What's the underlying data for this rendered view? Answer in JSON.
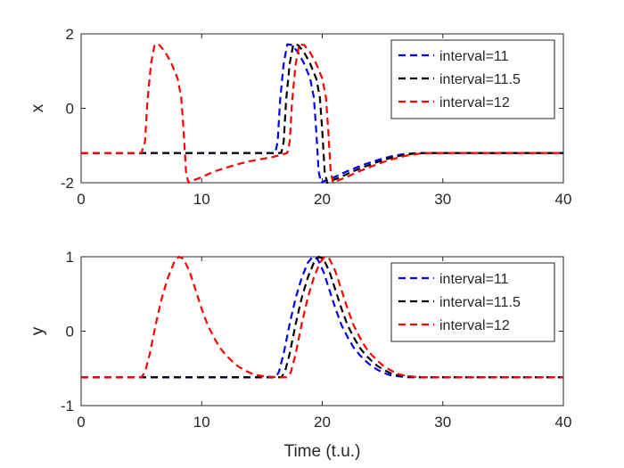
{
  "chart_data": [
    {
      "type": "line",
      "ylabel": "x",
      "xlabel": "",
      "xlim": [
        0,
        40
      ],
      "ylim": [
        -2,
        2
      ],
      "xticks": [
        "0",
        "10",
        "20",
        "30",
        "40"
      ],
      "yticks": [
        "-2",
        "0",
        "2"
      ],
      "legend_position": "top-right",
      "series": [
        {
          "name": "interval=11",
          "color": "#0000ff",
          "points": [
            [
              0,
              -1.2
            ],
            [
              16.1,
              -1.2
            ],
            [
              16.3,
              -0.9
            ],
            [
              16.5,
              0.2
            ],
            [
              16.8,
              1.2
            ],
            [
              17.1,
              1.72
            ],
            [
              17.5,
              1.7
            ],
            [
              18.0,
              1.5
            ],
            [
              18.5,
              1.2
            ],
            [
              19.0,
              0.8
            ],
            [
              19.3,
              0.3
            ],
            [
              19.5,
              -0.6
            ],
            [
              19.7,
              -1.7
            ],
            [
              19.9,
              -2.0
            ],
            [
              20.2,
              -1.95
            ],
            [
              21,
              -1.85
            ],
            [
              22,
              -1.7
            ],
            [
              23,
              -1.57
            ],
            [
              24,
              -1.45
            ],
            [
              25,
              -1.35
            ],
            [
              26,
              -1.27
            ],
            [
              27,
              -1.22
            ],
            [
              28,
              -1.2
            ],
            [
              40,
              -1.2
            ]
          ]
        },
        {
          "name": "interval=11.5",
          "color": "#000000",
          "points": [
            [
              0,
              -1.2
            ],
            [
              16.6,
              -1.2
            ],
            [
              16.8,
              -0.9
            ],
            [
              17.0,
              0.2
            ],
            [
              17.3,
              1.2
            ],
            [
              17.6,
              1.72
            ],
            [
              18.0,
              1.7
            ],
            [
              18.5,
              1.5
            ],
            [
              19.0,
              1.2
            ],
            [
              19.5,
              0.8
            ],
            [
              19.8,
              0.3
            ],
            [
              20.0,
              -0.6
            ],
            [
              20.2,
              -1.7
            ],
            [
              20.4,
              -2.0
            ],
            [
              20.7,
              -1.95
            ],
            [
              21.5,
              -1.85
            ],
            [
              22.5,
              -1.7
            ],
            [
              23.5,
              -1.57
            ],
            [
              24.5,
              -1.45
            ],
            [
              25.5,
              -1.35
            ],
            [
              26.5,
              -1.27
            ],
            [
              27.5,
              -1.22
            ],
            [
              28.5,
              -1.2
            ],
            [
              40,
              -1.2
            ]
          ]
        },
        {
          "name": "interval=12",
          "color": "#ff0000",
          "points": [
            [
              0,
              -1.2
            ],
            [
              5.0,
              -1.2
            ],
            [
              5.3,
              -0.9
            ],
            [
              5.5,
              0.2
            ],
            [
              5.8,
              1.2
            ],
            [
              6.1,
              1.72
            ],
            [
              6.5,
              1.7
            ],
            [
              7.0,
              1.5
            ],
            [
              7.5,
              1.2
            ],
            [
              8.0,
              0.8
            ],
            [
              8.3,
              0.3
            ],
            [
              8.5,
              -0.6
            ],
            [
              8.7,
              -1.7
            ],
            [
              8.9,
              -2.0
            ],
            [
              9.2,
              -1.95
            ],
            [
              10,
              -1.85
            ],
            [
              11,
              -1.7
            ],
            [
              12,
              -1.6
            ],
            [
              13,
              -1.5
            ],
            [
              14,
              -1.42
            ],
            [
              15,
              -1.36
            ],
            [
              16,
              -1.3
            ],
            [
              17.1,
              -1.2
            ],
            [
              17.3,
              -0.9
            ],
            [
              17.5,
              0.2
            ],
            [
              17.8,
              1.2
            ],
            [
              18.1,
              1.72
            ],
            [
              18.5,
              1.7
            ],
            [
              19.0,
              1.5
            ],
            [
              19.5,
              1.2
            ],
            [
              20.0,
              0.8
            ],
            [
              20.3,
              0.3
            ],
            [
              20.5,
              -0.6
            ],
            [
              20.7,
              -1.7
            ],
            [
              20.9,
              -2.0
            ],
            [
              21.2,
              -1.95
            ],
            [
              22,
              -1.85
            ],
            [
              23,
              -1.7
            ],
            [
              24,
              -1.57
            ],
            [
              25,
              -1.45
            ],
            [
              26,
              -1.35
            ],
            [
              27,
              -1.27
            ],
            [
              28,
              -1.22
            ],
            [
              29,
              -1.2
            ],
            [
              40,
              -1.2
            ]
          ]
        }
      ]
    },
    {
      "type": "line",
      "ylabel": "y",
      "xlabel": "Time (t.u.)",
      "xlim": [
        0,
        40
      ],
      "ylim": [
        -1,
        1
      ],
      "xticks": [
        "0",
        "10",
        "20",
        "30",
        "40"
      ],
      "yticks": [
        "-1",
        "0",
        "1"
      ],
      "legend_position": "top-right",
      "series": [
        {
          "name": "interval=11",
          "color": "#0000ff",
          "points": [
            [
              0,
              -0.62
            ],
            [
              16.1,
              -0.62
            ],
            [
              16.4,
              -0.55
            ],
            [
              16.8,
              -0.3
            ],
            [
              17.3,
              0.1
            ],
            [
              17.8,
              0.45
            ],
            [
              18.3,
              0.72
            ],
            [
              18.8,
              0.92
            ],
            [
              19.2,
              1.0
            ],
            [
              19.6,
              0.97
            ],
            [
              20.1,
              0.8
            ],
            [
              20.6,
              0.55
            ],
            [
              21.1,
              0.3
            ],
            [
              21.6,
              0.08
            ],
            [
              22.1,
              -0.08
            ],
            [
              22.6,
              -0.22
            ],
            [
              23.1,
              -0.32
            ],
            [
              23.6,
              -0.4
            ],
            [
              24.1,
              -0.47
            ],
            [
              24.6,
              -0.52
            ],
            [
              25.1,
              -0.56
            ],
            [
              25.6,
              -0.59
            ],
            [
              26.5,
              -0.61
            ],
            [
              27.2,
              -0.62
            ],
            [
              40,
              -0.62
            ]
          ]
        },
        {
          "name": "interval=11.5",
          "color": "#000000",
          "points": [
            [
              0,
              -0.62
            ],
            [
              16.6,
              -0.62
            ],
            [
              16.9,
              -0.55
            ],
            [
              17.3,
              -0.3
            ],
            [
              17.8,
              0.1
            ],
            [
              18.3,
              0.45
            ],
            [
              18.8,
              0.72
            ],
            [
              19.3,
              0.92
            ],
            [
              19.7,
              1.0
            ],
            [
              20.1,
              0.97
            ],
            [
              20.6,
              0.8
            ],
            [
              21.1,
              0.55
            ],
            [
              21.6,
              0.3
            ],
            [
              22.1,
              0.08
            ],
            [
              22.6,
              -0.08
            ],
            [
              23.1,
              -0.22
            ],
            [
              23.6,
              -0.32
            ],
            [
              24.1,
              -0.4
            ],
            [
              24.6,
              -0.47
            ],
            [
              25.1,
              -0.52
            ],
            [
              25.6,
              -0.56
            ],
            [
              26.1,
              -0.59
            ],
            [
              27.0,
              -0.61
            ],
            [
              27.7,
              -0.62
            ],
            [
              40,
              -0.62
            ]
          ]
        },
        {
          "name": "interval=12",
          "color": "#ff0000",
          "points": [
            [
              0,
              -0.62
            ],
            [
              5.0,
              -0.62
            ],
            [
              5.3,
              -0.55
            ],
            [
              5.7,
              -0.3
            ],
            [
              6.2,
              0.1
            ],
            [
              6.7,
              0.45
            ],
            [
              7.2,
              0.72
            ],
            [
              7.7,
              0.92
            ],
            [
              8.1,
              1.0
            ],
            [
              8.5,
              0.97
            ],
            [
              9.0,
              0.8
            ],
            [
              9.5,
              0.55
            ],
            [
              10.0,
              0.3
            ],
            [
              10.5,
              0.08
            ],
            [
              11.0,
              -0.08
            ],
            [
              11.5,
              -0.22
            ],
            [
              12.0,
              -0.32
            ],
            [
              12.5,
              -0.4
            ],
            [
              13.0,
              -0.47
            ],
            [
              13.5,
              -0.52
            ],
            [
              14.0,
              -0.56
            ],
            [
              14.5,
              -0.59
            ],
            [
              15.4,
              -0.61
            ],
            [
              16.5,
              -0.62
            ],
            [
              17.1,
              -0.62
            ],
            [
              17.4,
              -0.55
            ],
            [
              17.8,
              -0.3
            ],
            [
              18.3,
              0.1
            ],
            [
              18.8,
              0.45
            ],
            [
              19.3,
              0.72
            ],
            [
              19.8,
              0.92
            ],
            [
              20.2,
              1.0
            ],
            [
              20.6,
              0.97
            ],
            [
              21.1,
              0.8
            ],
            [
              21.6,
              0.55
            ],
            [
              22.1,
              0.3
            ],
            [
              22.6,
              0.08
            ],
            [
              23.1,
              -0.08
            ],
            [
              23.6,
              -0.22
            ],
            [
              24.1,
              -0.32
            ],
            [
              24.6,
              -0.4
            ],
            [
              25.1,
              -0.47
            ],
            [
              25.6,
              -0.52
            ],
            [
              26.1,
              -0.56
            ],
            [
              26.6,
              -0.59
            ],
            [
              27.5,
              -0.61
            ],
            [
              28.2,
              -0.62
            ],
            [
              40,
              -0.62
            ]
          ]
        }
      ]
    }
  ]
}
